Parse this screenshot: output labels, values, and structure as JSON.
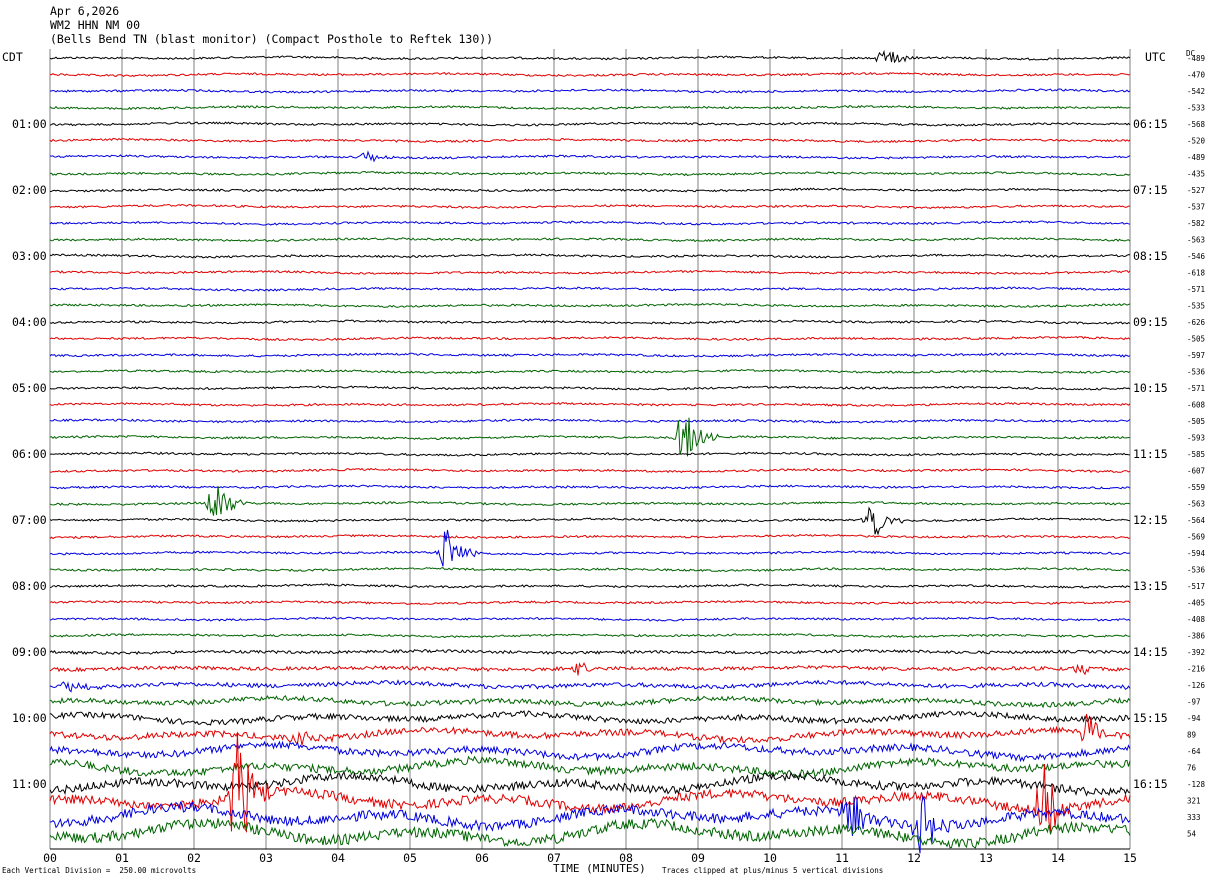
{
  "header": {
    "date": "Apr 6,2026",
    "station": "WM2 HHN NM 00",
    "description": "(Bells Bend TN (blast monitor) (Compact Posthole to Reftek 130))"
  },
  "left_timezone": "CDT",
  "right_timezone": "UTC",
  "dc_label": "DC",
  "footer": {
    "scale_note": "Each Vertical Division =  250.00 microvolts",
    "x_axis_title": "TIME (MINUTES)",
    "clip_note": "Traces clipped at plus/minus 5 vertical divisions"
  },
  "colors": {
    "trace_cycle": [
      "#000000",
      "#e00000",
      "#0000e0",
      "#006400"
    ],
    "grid": "#7f7f7f"
  },
  "chart_data": {
    "type": "line",
    "xlabel": "TIME (MINUTES)",
    "xlim": [
      0,
      15
    ],
    "x_ticks": [
      "00",
      "01",
      "02",
      "03",
      "04",
      "05",
      "06",
      "07",
      "08",
      "09",
      "10",
      "11",
      "12",
      "13",
      "14",
      "15"
    ],
    "trace_count": 48,
    "left_hour_labels": [
      "01:00",
      "02:00",
      "03:00",
      "04:00",
      "05:00",
      "06:00",
      "07:00",
      "08:00",
      "09:00",
      "10:00",
      "11:00"
    ],
    "right_hour_labels": [
      "06:15",
      "07:15",
      "08:15",
      "09:15",
      "10:15",
      "11:15",
      "12:15",
      "13:15",
      "14:15",
      "15:15",
      "16:15"
    ],
    "dc_offsets": [
      -489,
      -470,
      -542,
      -533,
      -568,
      -520,
      -489,
      -435,
      -527,
      -537,
      -582,
      -563,
      -546,
      -618,
      -571,
      -535,
      -626,
      -505,
      -597,
      -536,
      -571,
      -608,
      -505,
      -593,
      -585,
      -607,
      -559,
      -563,
      -564,
      -569,
      -594,
      -536,
      -517,
      -405,
      -408,
      -386,
      -392,
      -216,
      -126,
      -97,
      -94,
      89,
      -64,
      76,
      -128,
      321,
      333,
      54
    ],
    "events": [
      {
        "trace": 0,
        "minute": 11.6,
        "amplitude": 0.9
      },
      {
        "trace": 6,
        "minute": 4.4,
        "amplitude": 0.5
      },
      {
        "trace": 23,
        "minute": 8.8,
        "amplitude": 2.2
      },
      {
        "trace": 27,
        "minute": 2.3,
        "amplitude": 2.0
      },
      {
        "trace": 28,
        "minute": 11.4,
        "amplitude": 1.8
      },
      {
        "trace": 30,
        "minute": 5.5,
        "amplitude": 1.9
      },
      {
        "trace": 37,
        "minute": 7.3,
        "amplitude": 0.6
      },
      {
        "trace": 37,
        "minute": 14.3,
        "amplitude": 0.5
      },
      {
        "trace": 38,
        "minute": 0.2,
        "amplitude": 0.6
      },
      {
        "trace": 41,
        "minute": 3.5,
        "amplitude": 0.5
      },
      {
        "trace": 41,
        "minute": 14.4,
        "amplitude": 1.5
      },
      {
        "trace": 45,
        "minute": 2.6,
        "amplitude": 5.0
      },
      {
        "trace": 45,
        "minute": 13.8,
        "amplitude": 3.0
      },
      {
        "trace": 46,
        "minute": 11.1,
        "amplitude": 2.5
      },
      {
        "trace": 46,
        "minute": 12.1,
        "amplitude": 2.5
      }
    ]
  }
}
